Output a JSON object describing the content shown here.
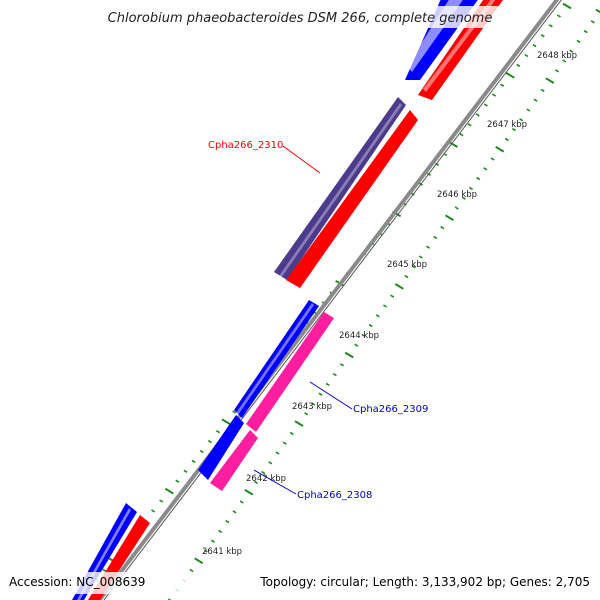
{
  "title": "Chlorobium phaeobacteroides DSM 266, complete genome",
  "footer": {
    "accession": "Accession: NC_008639",
    "summary": "Topology: circular; Length: 3,133,902 bp; Genes: 2,705"
  },
  "tick_labels": [
    "2648 kbp",
    "2647 kbp",
    "2646 kbp",
    "2645 kbp",
    "2644 kbp",
    "2643 kbp",
    "2642 kbp",
    "2641 kbp"
  ],
  "genes": [
    {
      "label": "Cpha266_2310",
      "color": "#ff0000"
    },
    {
      "label": "Cpha266_2309",
      "color": "#0000cc"
    },
    {
      "label": "Cpha266_2308",
      "color": "#0000cc"
    }
  ],
  "colors": {
    "backbone": "#8a8a8a",
    "forward_strand": "#0000ff",
    "reverse_strand": "#ff0000",
    "highlight_gene": "#4b3b8c",
    "pink_gene": "#ff1ea0",
    "ticks": "#1a8a1a"
  }
}
